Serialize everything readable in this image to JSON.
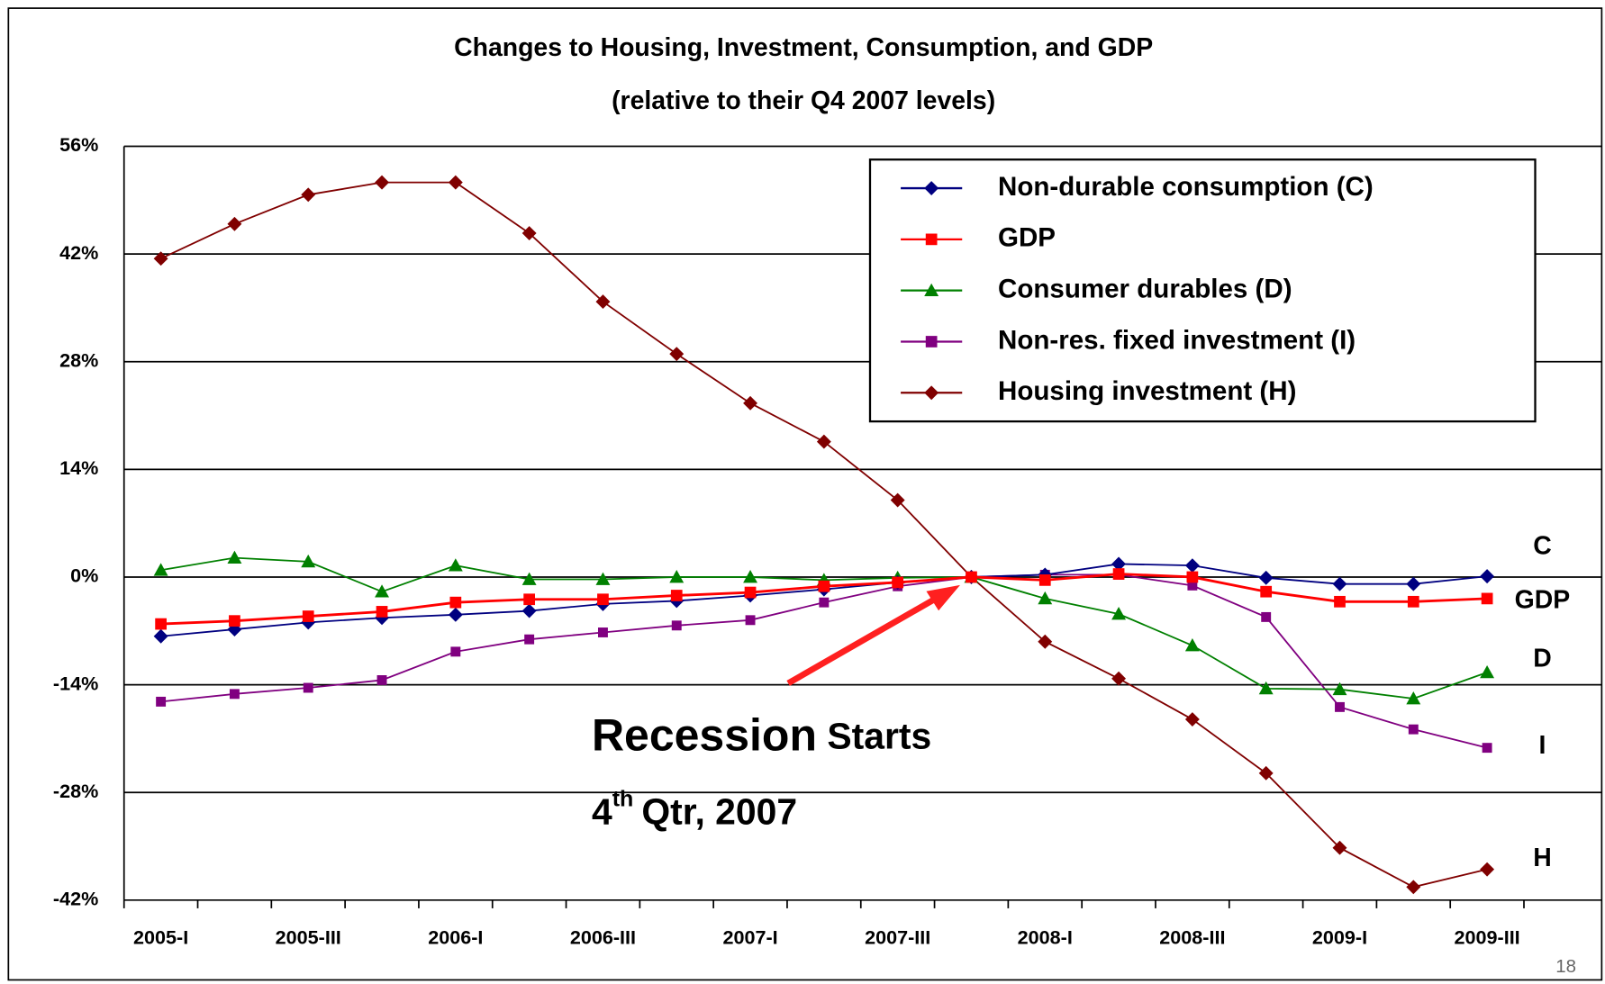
{
  "chart_data": {
    "type": "line",
    "title": "Changes to Housing, Investment, Consumption, and GDP",
    "subtitle": "(relative to their Q4 2007 levels)",
    "categories": [
      "2005-I",
      null,
      "2005-III",
      null,
      "2006-I",
      null,
      "2006-III",
      null,
      "2007-I",
      null,
      "2007-III",
      null,
      "2008-I",
      null,
      "2008-III",
      null,
      "2009-I",
      null,
      "2009-III"
    ],
    "ylim": [
      -42,
      56
    ],
    "yticks": [
      {
        "value": -42,
        "label": "-42%"
      },
      {
        "value": -28,
        "label": "-28%"
      },
      {
        "value": -14,
        "label": "-14%"
      },
      {
        "value": 0,
        "label": "0%"
      },
      {
        "value": 14,
        "label": "14%"
      },
      {
        "value": 28,
        "label": "28%"
      },
      {
        "value": 42,
        "label": "42%"
      },
      {
        "value": 56,
        "label": "56%"
      }
    ],
    "grid": true,
    "legend": "upper right",
    "series": [
      {
        "name": "Non-durable consumption (C)",
        "color": "#000080",
        "marker": "diamond",
        "values": [
          -7.7,
          -6.8,
          -5.9,
          -5.3,
          -4.9,
          -4.4,
          -3.5,
          -3.1,
          -2.4,
          -1.6,
          -0.7,
          0,
          0.3,
          1.7,
          1.5,
          -0.1,
          -0.9,
          -0.9,
          0.1
        ]
      },
      {
        "name": "GDP",
        "color": "#ff0000",
        "marker": "square",
        "values": [
          -6.1,
          -5.7,
          -5.1,
          -4.5,
          -3.3,
          -2.9,
          -2.9,
          -2.4,
          -2.0,
          -1.2,
          -0.7,
          0,
          -0.4,
          0.4,
          0,
          -1.9,
          -3.2,
          -3.2,
          -2.8
        ]
      },
      {
        "name": "Consumer durables (D)",
        "color": "#008000",
        "marker": "triangle",
        "values": [
          0.9,
          2.5,
          2.0,
          -1.9,
          1.5,
          -0.3,
          -0.3,
          0,
          0,
          -0.4,
          -0.1,
          0,
          -2.8,
          -4.8,
          -8.9,
          -14.5,
          -14.6,
          -15.8,
          -12.4
        ]
      },
      {
        "name": "Non-res. fixed investment (I)",
        "color": "#800080",
        "marker": "square",
        "values": [
          -16.2,
          -15.2,
          -14.4,
          -13.4,
          -9.7,
          -8.1,
          -7.2,
          -6.3,
          -5.6,
          -3.3,
          -1.2,
          0,
          0.3,
          0.3,
          -1.1,
          -5.2,
          -16.9,
          -19.8,
          -22.2
        ]
      },
      {
        "name": "Housing investment (H)",
        "color": "#800000",
        "marker": "diamond",
        "values": [
          41.4,
          45.9,
          49.7,
          51.3,
          51.3,
          44.7,
          35.8,
          29.0,
          22.6,
          17.6,
          10.0,
          0,
          -8.4,
          -13.2,
          -18.5,
          -25.5,
          -35.2,
          -40.3,
          -38.0
        ]
      }
    ],
    "series_labels": [
      "C",
      "GDP",
      "D",
      "I",
      "H"
    ],
    "annotation": {
      "line1_big": "Recession",
      "line1_small": "Starts",
      "line2_num": "4",
      "line2_sup": "th",
      "line2_rest": "Qtr, 2007"
    },
    "page_number": "18"
  }
}
